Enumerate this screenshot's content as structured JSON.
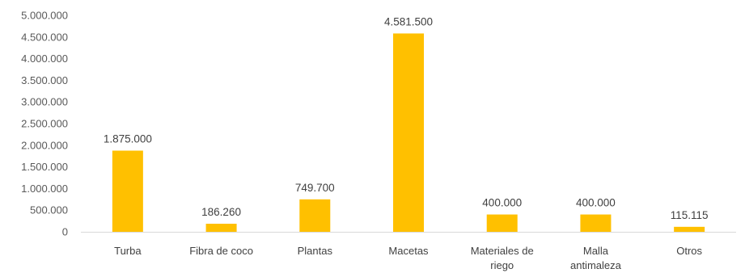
{
  "chart_data": {
    "type": "bar",
    "categories": [
      [
        "Turba"
      ],
      [
        "Fibra de coco"
      ],
      [
        "Plantas"
      ],
      [
        "Macetas"
      ],
      [
        "Materiales de",
        "riego"
      ],
      [
        "Malla",
        "antimaleza"
      ],
      [
        "Otros"
      ]
    ],
    "values": [
      1875000,
      186260,
      749700,
      4581500,
      400000,
      400000,
      115115
    ],
    "data_labels": [
      "1.875.000",
      "186.260",
      "749.700",
      "4.581.500",
      "400.000",
      "400.000",
      "115.115"
    ],
    "y_ticks": [
      0,
      500000,
      1000000,
      1500000,
      2000000,
      2500000,
      3000000,
      3500000,
      4000000,
      4500000,
      5000000
    ],
    "y_tick_labels": [
      "0",
      "500.000",
      "1.000.000",
      "1.500.000",
      "2.000.000",
      "2.500.000",
      "3.000.000",
      "3.500.000",
      "4.000.000",
      "4.500.000",
      "5.000.000"
    ],
    "ylim": [
      0,
      5000000
    ],
    "grid": false,
    "legend": "none",
    "bar_color": "#FFC000",
    "axis_color": "#D9D9D9",
    "title": "",
    "xlabel": "",
    "ylabel": ""
  }
}
